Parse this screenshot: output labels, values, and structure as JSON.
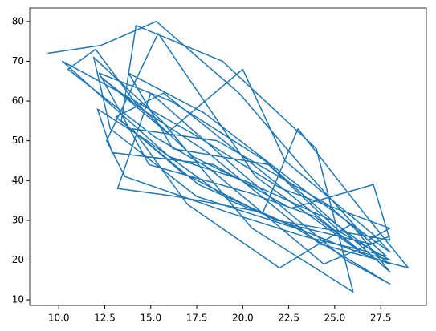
{
  "chart_data": {
    "type": "line",
    "color": "#1f77b4",
    "x": [
      9.4,
      12.3,
      15.3,
      19.8,
      23.5,
      26.8,
      28.0,
      22.1,
      17.2,
      13.0,
      10.2,
      12.6,
      16.0,
      20.1,
      24.8,
      28.0,
      25.1,
      19.3,
      14.8,
      12.1,
      12.9,
      18.4,
      22.6,
      27.1,
      28.0,
      21.8,
      16.7,
      13.4,
      14.2,
      18.9,
      24.0,
      26.0,
      20.5,
      15.6,
      11.9,
      12.8,
      17.5,
      22.9,
      28.0,
      25.6,
      19.9,
      15.0,
      13.2,
      16.4,
      21.1,
      23.0,
      26.9,
      29.0,
      24.2,
      18.1,
      14.5,
      12.3,
      15.9,
      20.0,
      22.3,
      27.2,
      28.0,
      23.8,
      17.9,
      13.8,
      16.2,
      21.4,
      25.3,
      28.0,
      26.4,
      20.7,
      15.4,
      12.6,
      13.6,
      19.2,
      23.3,
      27.8,
      24.6,
      18.6,
      14.0,
      17.0,
      22.0,
      25.9,
      28.0,
      21.2,
      16.1,
      12.2,
      14.9,
      20.3,
      23.9,
      26.2,
      19.5,
      15.7,
      13.1,
      17.6,
      22.5,
      27.0,
      28.0,
      24.4,
      18.2,
      15.2,
      10.5,
      12.0,
      14.1,
      17.3,
      20.8
    ],
    "values": [
      72,
      74,
      80,
      62,
      42,
      25,
      28,
      38,
      52,
      63,
      70,
      60,
      46,
      40,
      30,
      19,
      24,
      35,
      50,
      58,
      47,
      44,
      33,
      39,
      25,
      30,
      42,
      55,
      79,
      70,
      48,
      12,
      28,
      55,
      71,
      53,
      36,
      28,
      14,
      20,
      42,
      62,
      38,
      36,
      32,
      53,
      30,
      18,
      24,
      47,
      58,
      66,
      52,
      68,
      45,
      26,
      22,
      36,
      57,
      67,
      48,
      44,
      27,
      20,
      22,
      41,
      77,
      50,
      41,
      32,
      26,
      21,
      34,
      50,
      53,
      34,
      18,
      29,
      17,
      45,
      60,
      67,
      44,
      37,
      31,
      23,
      48,
      62,
      56,
      39,
      29,
      24,
      26,
      19,
      43,
      51,
      68,
      73,
      60,
      46,
      38
    ],
    "xlim": [
      8.42,
      29.98
    ],
    "ylim": [
      8.6,
      83.4
    ],
    "xticks": [
      {
        "value": 10,
        "label": "10.0"
      },
      {
        "value": 12.5,
        "label": "12.5"
      },
      {
        "value": 15,
        "label": "15.0"
      },
      {
        "value": 17.5,
        "label": "17.5"
      },
      {
        "value": 20,
        "label": "20.0"
      },
      {
        "value": 22.5,
        "label": "22.5"
      },
      {
        "value": 25,
        "label": "25.0"
      },
      {
        "value": 27.5,
        "label": "27.5"
      }
    ],
    "yticks": [
      10,
      20,
      30,
      40,
      50,
      60,
      70,
      80
    ]
  }
}
